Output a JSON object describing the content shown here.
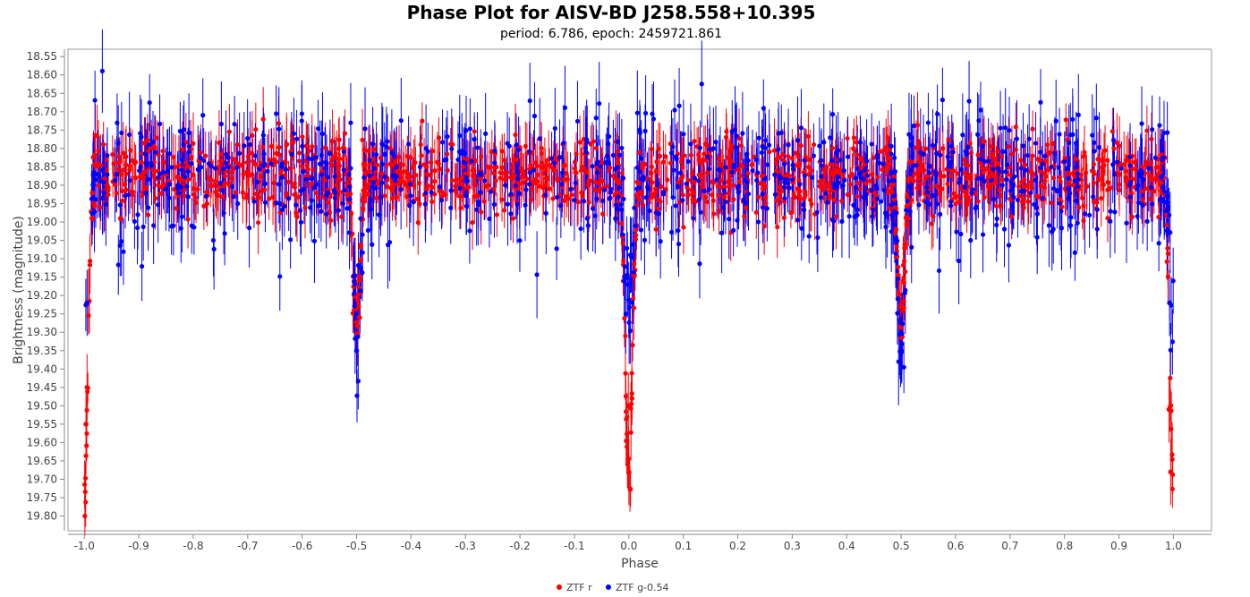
{
  "chart_data": {
    "type": "scatter",
    "title": "Phase Plot for AISV-BD J258.558+10.395",
    "subtitle": "period: 6.786, epoch: 2459721.861",
    "xlabel": "Phase",
    "ylabel": "Brightness (magnitude)",
    "xlim": [
      -1.03,
      1.07
    ],
    "ylim": [
      19.84,
      18.53
    ],
    "y_inverted": true,
    "x_ticks": [
      "-1.0",
      "-0.9",
      "-0.8",
      "-0.7",
      "-0.6",
      "-0.5",
      "-0.4",
      "-0.3",
      "-0.2",
      "-0.1",
      "0.0",
      "0.1",
      "0.2",
      "0.3",
      "0.4",
      "0.5",
      "0.6",
      "0.7",
      "0.8",
      "0.9",
      "1.0"
    ],
    "y_ticks": [
      "18.55",
      "18.60",
      "18.65",
      "18.70",
      "18.75",
      "18.80",
      "18.85",
      "18.90",
      "18.95",
      "19.00",
      "19.05",
      "19.10",
      "19.15",
      "19.20",
      "19.25",
      "19.30",
      "19.35",
      "19.40",
      "19.45",
      "19.50",
      "19.55",
      "19.60",
      "19.65",
      "19.70",
      "19.75",
      "19.80"
    ],
    "legend_position": "bottom-center",
    "grid": false,
    "series": [
      {
        "name": "ZTF r",
        "color": "#ff0000",
        "baseline": 18.87,
        "primary_eclipse_depth": 19.7,
        "secondary_eclipse_depth": 19.28,
        "eclipse_phases": [
          -1.0,
          -0.5,
          0.0,
          0.5,
          1.0
        ],
        "highlight_points": [
          {
            "x": -0.997,
            "y": 19.55
          },
          {
            "x": -0.995,
            "y": 19.45
          },
          {
            "x": 0.0,
            "y": 19.68
          },
          {
            "x": -0.001,
            "y": 19.5
          },
          {
            "x": 0.995,
            "y": 19.68
          },
          {
            "x": 0.992,
            "y": 19.51
          }
        ]
      },
      {
        "name": "ZTF g-0.54",
        "color": "#0000ff",
        "baseline": 18.88,
        "primary_eclipse_depth": 19.23,
        "secondary_eclipse_depth": 19.35,
        "eclipse_phases": [
          -1.0,
          -0.5,
          0.0,
          0.5,
          1.0
        ],
        "highlight_points": [
          {
            "x": -0.5,
            "y": 19.35
          },
          {
            "x": 0.5,
            "y": 19.35
          },
          {
            "x": -0.995,
            "y": 19.22
          },
          {
            "x": 0.993,
            "y": 19.22
          }
        ]
      }
    ]
  }
}
